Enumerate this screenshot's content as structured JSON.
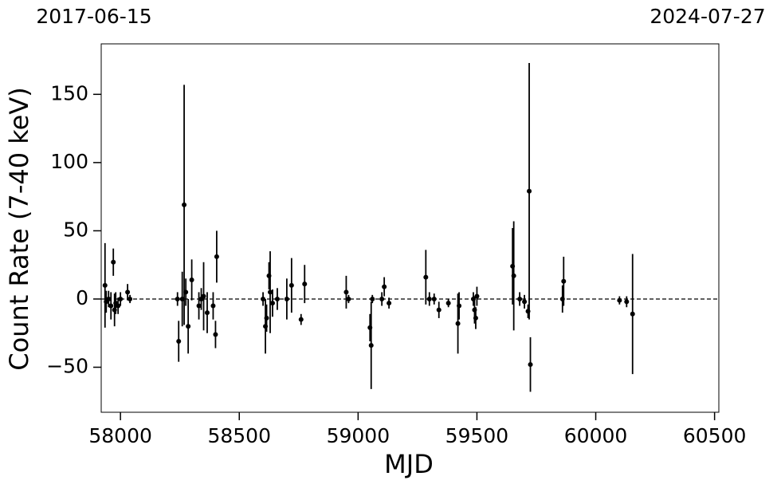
{
  "chart_data": {
    "type": "errorbar",
    "xlabel": "MJD",
    "ylabel": "Count Rate (7-40 keV)",
    "annotations": [
      "2017-06-15",
      "2024-07-27"
    ],
    "xlim": [
      57919,
      60518
    ],
    "ylim": [
      -83,
      187
    ],
    "xticks": [
      58000,
      58500,
      59000,
      59500,
      60000,
      60500
    ],
    "yticks": [
      {
        "value": -50,
        "label": "−50"
      },
      0,
      50,
      100,
      150
    ],
    "reference_line": 0,
    "color": "#000000",
    "series": [
      {
        "x": [
          57935,
          57940,
          57950,
          57960,
          57970,
          57975,
          57980,
          57990,
          58000,
          58030,
          58040,
          58240,
          58245,
          58260,
          58268,
          58275,
          58285,
          58300,
          58330,
          58340,
          58350,
          58365,
          58390,
          58400,
          58405,
          58600,
          58610,
          58615,
          58625,
          58630,
          58640,
          58660,
          58700,
          58720,
          58760,
          58775,
          58950,
          58960,
          59050,
          59055,
          59060,
          59100,
          59110,
          59130,
          59285,
          59300,
          59320,
          59340,
          59380,
          59420,
          59425,
          59485,
          59490,
          59495,
          59500,
          59650,
          59655,
          59680,
          59700,
          59715,
          59720,
          59725,
          59860,
          59865,
          60100,
          60130,
          60155
        ],
        "values": [
          10,
          -2,
          0,
          -5,
          27,
          -8,
          -3,
          -5,
          0,
          5,
          0,
          0,
          -31,
          0,
          69,
          5,
          -20,
          14,
          -5,
          0,
          2,
          -10,
          -5,
          -26,
          31,
          0,
          -20,
          -14,
          17,
          5,
          -3,
          0,
          0,
          10,
          -15,
          11,
          5,
          0,
          -21,
          -34,
          0,
          0,
          9,
          -3,
          16,
          0,
          0,
          -8,
          -3,
          -18,
          -5,
          0,
          -8,
          -14,
          2,
          24,
          17,
          0,
          -2,
          -9,
          79,
          -48,
          0,
          13,
          -1,
          -2,
          -11
        ],
        "errors": [
          31,
          8,
          6,
          10,
          10,
          12,
          8,
          6,
          5,
          6,
          3,
          5,
          15,
          20,
          88,
          10,
          20,
          15,
          10,
          8,
          25,
          15,
          10,
          10,
          19,
          5,
          20,
          10,
          10,
          30,
          10,
          8,
          15,
          20,
          4,
          14,
          12,
          3,
          10,
          32,
          3,
          5,
          7,
          4,
          20,
          5,
          4,
          6,
          3,
          22,
          10,
          5,
          10,
          8,
          7,
          28,
          40,
          5,
          5,
          5,
          94,
          20,
          10,
          18,
          3,
          4,
          44
        ]
      }
    ]
  }
}
